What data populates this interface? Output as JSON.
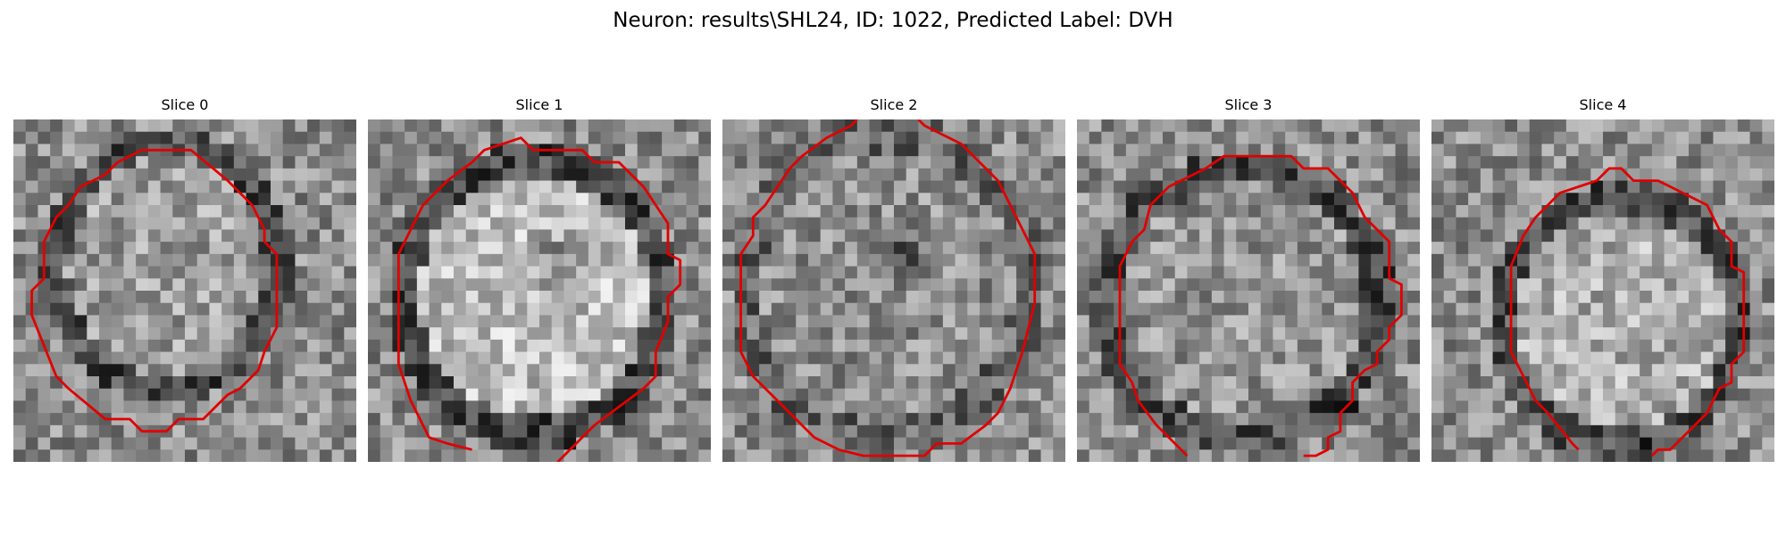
{
  "figure": {
    "title": "Neuron: results\\SHL24, ID: 1022, Predicted Label: DVH"
  },
  "panels": [
    {
      "title": "Slice 0"
    },
    {
      "title": "Slice 1"
    },
    {
      "title": "Slice 2"
    },
    {
      "title": "Slice 3"
    },
    {
      "title": "Slice 4"
    }
  ],
  "style": {
    "contour_color": "#e00000",
    "colormap": "gray"
  }
}
